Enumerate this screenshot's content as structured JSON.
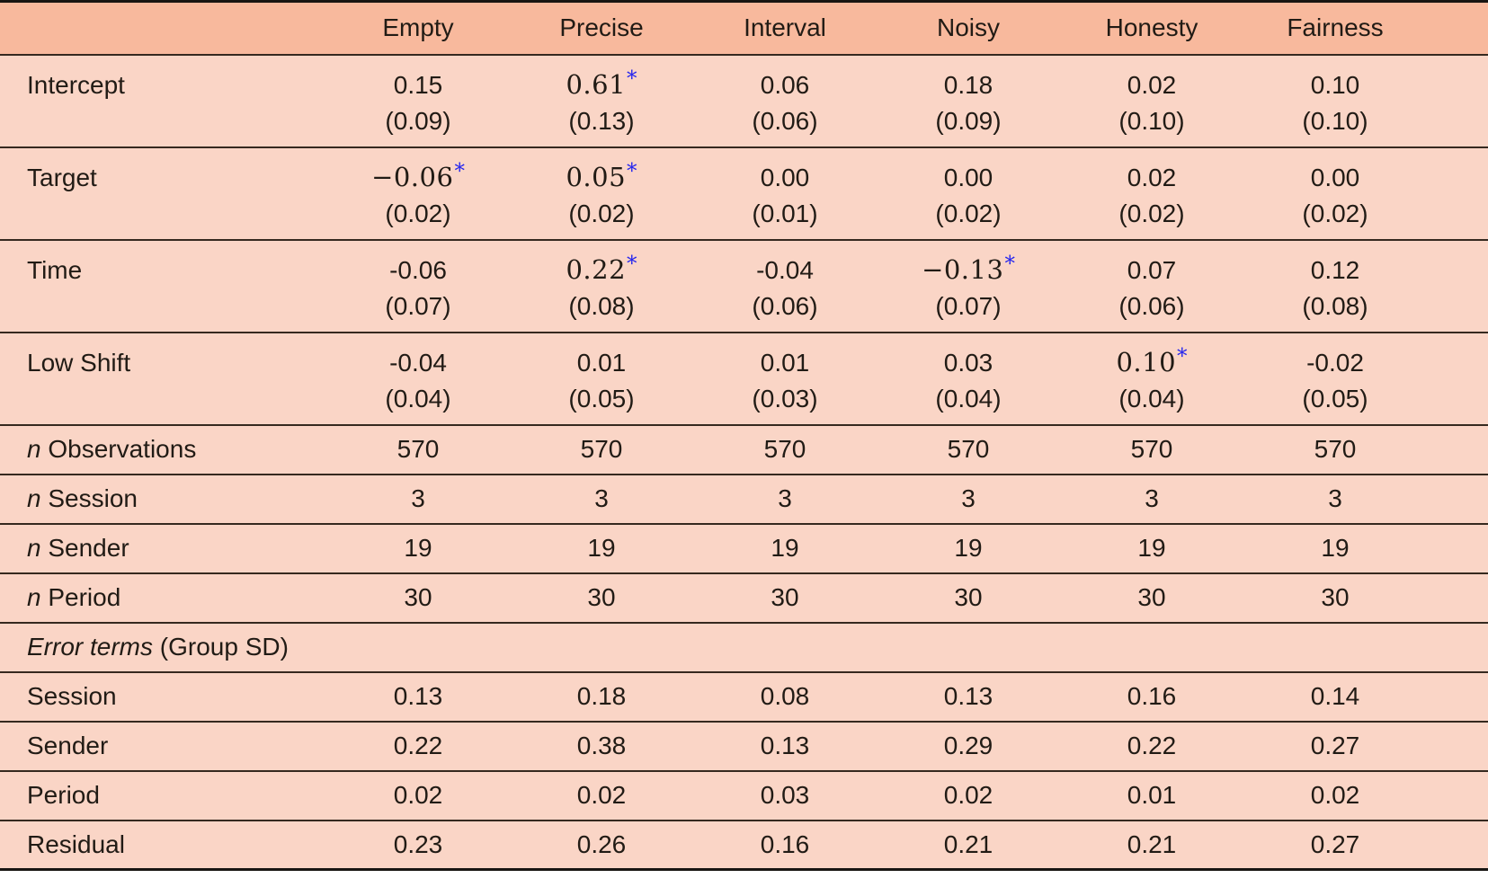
{
  "colors": {
    "header_background": "#f8b99d",
    "body_background": "#fad5c6",
    "rule_color": "#35291f",
    "significance_star_color": "#2626ee",
    "text_color": "#211b15"
  },
  "significance_marker": "*",
  "header": {
    "row_label_blank": "",
    "columns": [
      "Empty",
      "Precise",
      "Interval",
      "Noisy",
      "Honesty",
      "Fairness"
    ]
  },
  "coefficient_rows": [
    {
      "label": "Intercept",
      "estimates": [
        {
          "value": "0.15",
          "significant": false
        },
        {
          "value": "0.61",
          "significant": true
        },
        {
          "value": "0.06",
          "significant": false
        },
        {
          "value": "0.18",
          "significant": false
        },
        {
          "value": "0.02",
          "significant": false
        },
        {
          "value": "0.10",
          "significant": false
        }
      ],
      "std_errors": [
        "(0.09)",
        "(0.13)",
        "(0.06)",
        "(0.09)",
        "(0.10)",
        "(0.10)"
      ]
    },
    {
      "label": "Target",
      "estimates": [
        {
          "value": "−0.06",
          "significant": true
        },
        {
          "value": "0.05",
          "significant": true
        },
        {
          "value": "0.00",
          "significant": false
        },
        {
          "value": "0.00",
          "significant": false
        },
        {
          "value": "0.02",
          "significant": false
        },
        {
          "value": "0.00",
          "significant": false
        }
      ],
      "std_errors": [
        "(0.02)",
        "(0.02)",
        "(0.01)",
        "(0.02)",
        "(0.02)",
        "(0.02)"
      ]
    },
    {
      "label": "Time",
      "estimates": [
        {
          "value": "-0.06",
          "significant": false
        },
        {
          "value": "0.22",
          "significant": true
        },
        {
          "value": "-0.04",
          "significant": false
        },
        {
          "value": "−0.13",
          "significant": true
        },
        {
          "value": "0.07",
          "significant": false
        },
        {
          "value": "0.12",
          "significant": false
        }
      ],
      "std_errors": [
        "(0.07)",
        "(0.08)",
        "(0.06)",
        "(0.07)",
        "(0.06)",
        "(0.08)"
      ]
    },
    {
      "label": "Low Shift",
      "estimates": [
        {
          "value": "-0.04",
          "significant": false
        },
        {
          "value": "0.01",
          "significant": false
        },
        {
          "value": "0.01",
          "significant": false
        },
        {
          "value": "0.03",
          "significant": false
        },
        {
          "value": "0.10",
          "significant": true
        },
        {
          "value": "-0.02",
          "significant": false
        }
      ],
      "std_errors": [
        "(0.04)",
        "(0.05)",
        "(0.03)",
        "(0.04)",
        "(0.04)",
        "(0.05)"
      ]
    }
  ],
  "count_rows": [
    {
      "label_prefix_italic": "n",
      "label": "Observations",
      "values": [
        "570",
        "570",
        "570",
        "570",
        "570",
        "570"
      ]
    },
    {
      "label_prefix_italic": "n",
      "label": "Session",
      "values": [
        "3",
        "3",
        "3",
        "3",
        "3",
        "3"
      ]
    },
    {
      "label_prefix_italic": "n",
      "label": "Sender",
      "values": [
        "19",
        "19",
        "19",
        "19",
        "19",
        "19"
      ]
    },
    {
      "label_prefix_italic": "n",
      "label": "Period",
      "values": [
        "30",
        "30",
        "30",
        "30",
        "30",
        "30"
      ]
    }
  ],
  "section_header": {
    "italic": "Error terms",
    "normal": " (Group SD)"
  },
  "error_term_rows": [
    {
      "label": "Session",
      "values": [
        "0.13",
        "0.18",
        "0.08",
        "0.13",
        "0.16",
        "0.14"
      ]
    },
    {
      "label": "Sender",
      "values": [
        "0.22",
        "0.38",
        "0.13",
        "0.29",
        "0.22",
        "0.27"
      ]
    },
    {
      "label": "Period",
      "values": [
        "0.02",
        "0.02",
        "0.03",
        "0.02",
        "0.01",
        "0.02"
      ]
    },
    {
      "label": "Residual",
      "values": [
        "0.23",
        "0.26",
        "0.16",
        "0.21",
        "0.21",
        "0.27"
      ]
    }
  ]
}
